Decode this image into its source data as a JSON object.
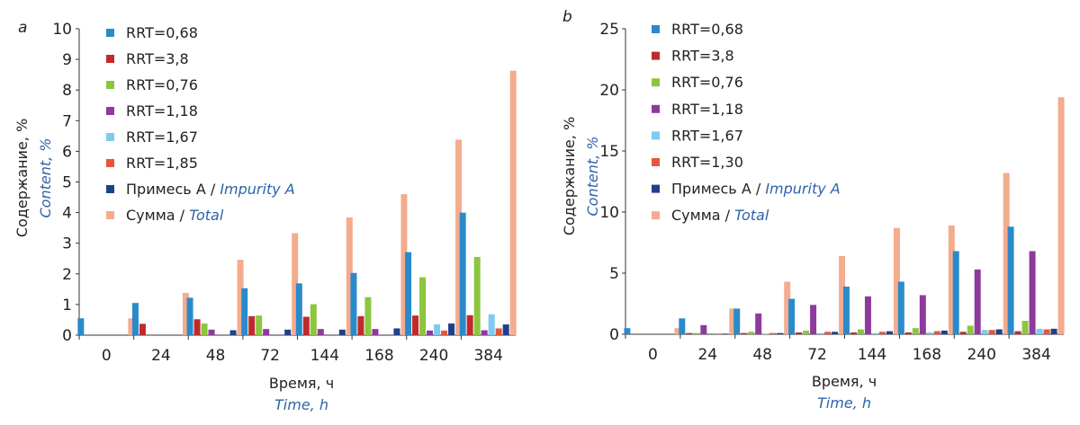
{
  "colors": {
    "RRT=0,68": "#2a8bcb",
    "RRT=3,8": "#bf2b2b",
    "RRT=0,76": "#8cc63f",
    "RRT=1,18": "#8e3a9d",
    "RRT=1,67": "#7ecbf0",
    "RRT=1,85": "#e8553a",
    "RRT=1,30": "#e8553a",
    "impurity": "#1f3f8a",
    "total": "#f4ac8e",
    "english_text": "#2e63a8"
  },
  "chart_data": [
    {
      "type": "bar",
      "panel_label": "a",
      "categories": [
        "0",
        "24",
        "48",
        "72",
        "144",
        "168",
        "240",
        "384"
      ],
      "xlabel_ru": "Время, ч",
      "xlabel_en": "Time, h",
      "ylabel_ru": "Содержание, %",
      "ylabel_en": "Content, %",
      "ylim": [
        0,
        10
      ],
      "yticks": [
        0,
        1,
        2,
        3,
        4,
        5,
        6,
        7,
        8,
        9,
        10
      ],
      "grid": false,
      "legend_position": "top-left",
      "series": [
        {
          "name": "RRT=0,68",
          "color_key": "RRT=0,68",
          "values": [
            0.55,
            1.05,
            1.22,
            1.53,
            1.69,
            2.03,
            2.71,
            4.0
          ]
        },
        {
          "name": "RRT=3,8",
          "color_key": "RRT=3,8",
          "values": [
            0,
            0.37,
            0.52,
            0.62,
            0.6,
            0.62,
            0.64,
            0.65
          ]
        },
        {
          "name": "RRT=0,76",
          "color_key": "RRT=0,76",
          "values": [
            0,
            0,
            0.38,
            0.64,
            1.01,
            1.24,
            1.89,
            2.55
          ]
        },
        {
          "name": "RRT=1,18",
          "color_key": "RRT=1,18",
          "values": [
            0,
            0,
            0.18,
            0.2,
            0.2,
            0.2,
            0.15,
            0.16
          ]
        },
        {
          "name": "RRT=1,67",
          "color_key": "RRT=1,67",
          "values": [
            0,
            0,
            0,
            0,
            0,
            0,
            0.35,
            0.68
          ]
        },
        {
          "name": "RRT=1,85",
          "color_key": "RRT=1,85",
          "values": [
            0,
            0,
            0,
            0,
            0,
            0,
            0.15,
            0.22
          ]
        },
        {
          "name_ru": "Примесь А",
          "name_en": "Impurity A",
          "color_key": "impurity",
          "values": [
            0,
            0,
            0.16,
            0.18,
            0.18,
            0.22,
            0.38,
            0.35
          ]
        },
        {
          "name_ru": "Сумма",
          "name_en": "Total",
          "color_key": "total",
          "values": [
            0.55,
            1.38,
            2.46,
            3.33,
            3.84,
            4.6,
            6.38,
            8.63
          ]
        }
      ]
    },
    {
      "type": "bar",
      "panel_label": "b",
      "categories": [
        "0",
        "24",
        "48",
        "72",
        "144",
        "168",
        "240",
        "384"
      ],
      "xlabel_ru": "Время, ч",
      "xlabel_en": "Time, h",
      "ylabel_ru": "Содержание, %",
      "ylabel_en": "Content, %",
      "ylim": [
        0,
        25
      ],
      "yticks": [
        0,
        5,
        10,
        15,
        20,
        25
      ],
      "grid": false,
      "legend_position": "top-left",
      "series": [
        {
          "name": "RRT=0,68",
          "color_key": "RRT=0,68",
          "values": [
            0.5,
            1.3,
            2.1,
            2.9,
            3.9,
            4.3,
            6.8,
            8.8
          ]
        },
        {
          "name": "RRT=3,8",
          "color_key": "RRT=3,8",
          "values": [
            0,
            0.1,
            0.1,
            0.15,
            0.15,
            0.15,
            0.2,
            0.25
          ]
        },
        {
          "name": "RRT=0,76",
          "color_key": "RRT=0,76",
          "values": [
            0,
            0.1,
            0.2,
            0.3,
            0.4,
            0.5,
            0.7,
            1.1
          ]
        },
        {
          "name": "RRT=1,18",
          "color_key": "RRT=1,18",
          "values": [
            0,
            0.75,
            1.7,
            2.4,
            3.1,
            3.2,
            5.3,
            6.8
          ]
        },
        {
          "name": "RRT=1,67",
          "color_key": "RRT=1,67",
          "values": [
            0,
            0,
            0.05,
            0.1,
            0.1,
            0.15,
            0.35,
            0.45
          ]
        },
        {
          "name": "RRT=1,30",
          "color_key": "RRT=1,30",
          "values": [
            0,
            0.05,
            0.1,
            0.2,
            0.2,
            0.25,
            0.35,
            0.4
          ]
        },
        {
          "name_ru": "Примесь А",
          "name_en": "Impurity A",
          "color_key": "impurity",
          "values": [
            0,
            0.05,
            0.1,
            0.2,
            0.25,
            0.3,
            0.4,
            0.45
          ]
        },
        {
          "name_ru": "Сумма",
          "name_en": "Total",
          "color_key": "total",
          "values": [
            0.5,
            2.1,
            4.3,
            6.4,
            8.7,
            8.9,
            13.2,
            19.4
          ]
        }
      ]
    }
  ]
}
